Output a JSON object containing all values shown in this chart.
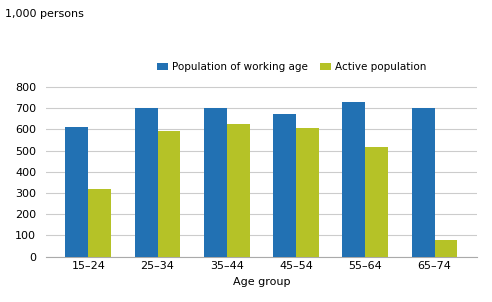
{
  "categories": [
    "15–24",
    "25–34",
    "35–44",
    "45–54",
    "55–64",
    "65–74"
  ],
  "working_age": [
    610,
    700,
    700,
    670,
    730,
    700
  ],
  "active_pop": [
    320,
    590,
    625,
    607,
    515,
    80
  ],
  "working_age_color": "#2271b3",
  "active_pop_color": "#b5c227",
  "ylabel_top": "1,000 persons",
  "xlabel": "Age group",
  "legend_labels": [
    "Population of working age",
    "Active population"
  ],
  "ylim": [
    0,
    850
  ],
  "yticks": [
    0,
    100,
    200,
    300,
    400,
    500,
    600,
    700,
    800
  ],
  "bar_width": 0.33,
  "grid_color": "#cccccc",
  "background_color": "#ffffff"
}
